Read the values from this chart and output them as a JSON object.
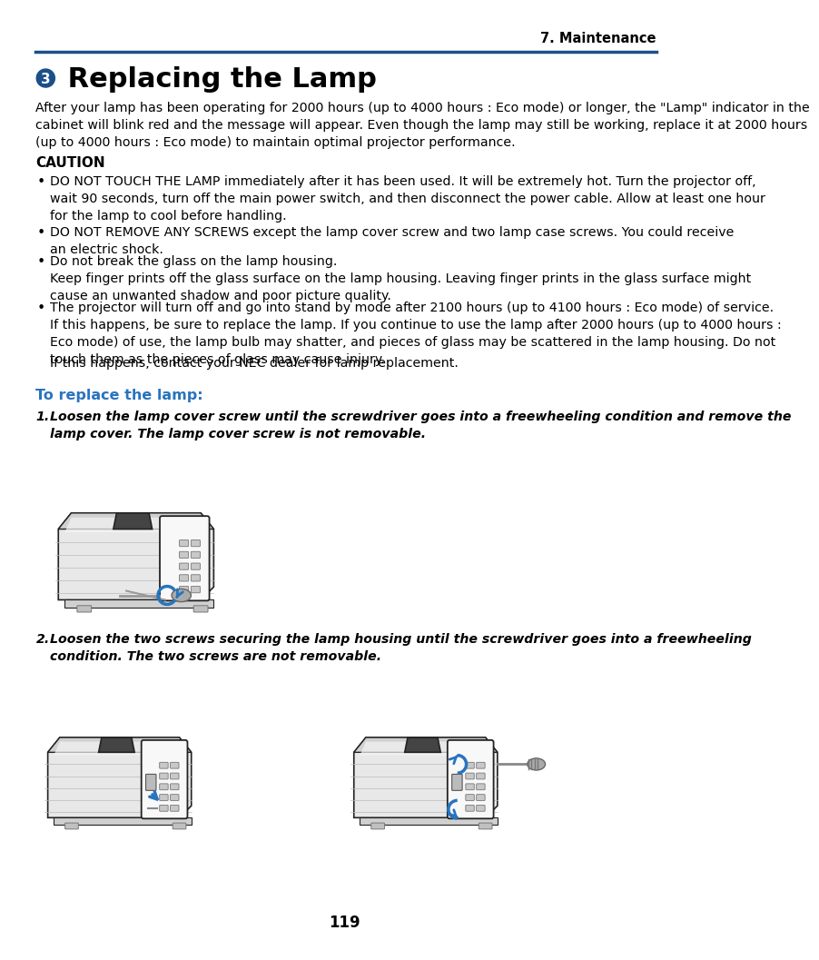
{
  "page_bg": "#ffffff",
  "header_text": "7. Maintenance",
  "header_color": "#000000",
  "header_line_color": "#1a4f8a",
  "title_circle": "3",
  "title_circle_bg": "#1a4f8a",
  "title_circle_text_color": "#ffffff",
  "title_text": " Replacing the Lamp",
  "title_fontsize": 22,
  "body_fontsize": 10.2,
  "body_color": "#000000",
  "intro_text": "After your lamp has been operating for 2000 hours (up to 4000 hours : Eco mode) or longer, the \"Lamp\" indicator in the\ncabinet will blink red and the message will appear. Even though the lamp may still be working, replace it at 2000 hours\n(up to 4000 hours : Eco mode) to maintain optimal projector performance.",
  "caution_title": "CAUTION",
  "bullet1": "DO NOT TOUCH THE LAMP immediately after it has been used. It will be extremely hot. Turn the projector off,\nwait 90 seconds, turn off the main power switch, and then disconnect the power cable. Allow at least one hour\nfor the lamp to cool before handling.",
  "bullet2": "DO NOT REMOVE ANY SCREWS except the lamp cover screw and two lamp case screws. You could receive\nan electric shock.",
  "bullet3": "Do not break the glass on the lamp housing.\nKeep finger prints off the glass surface on the lamp housing. Leaving finger prints in the glass surface might\ncause an unwanted shadow and poor picture quality.",
  "bullet4": "The projector will turn off and go into stand by mode after 2100 hours (up to 4100 hours : Eco mode) of service.\nIf this happens, be sure to replace the lamp. If you continue to use the lamp after 2000 hours (up to 4000 hours :\nEco mode) of use, the lamp bulb may shatter, and pieces of glass may be scattered in the lamp housing. Do not\ntouch them as the pieces of glass may cause injury.",
  "bullet4b": "If this happens, contact your NEC dealer for lamp replacement.",
  "replace_title": "To replace the lamp:",
  "step1_num": "1.",
  "step1_text": "Loosen the lamp cover screw until the screwdriver goes into a freewheeling condition and remove the\nlamp cover. The lamp cover screw is not removable.",
  "step2_num": "2.",
  "step2_text": "Loosen the two screws securing the lamp housing until the screwdriver goes into a freewheeling\ncondition. The two screws are not removable.",
  "page_number": "119",
  "blue_color": "#2874be",
  "dark_gray": "#555555",
  "mid_gray": "#888888",
  "light_gray": "#d8d8d8",
  "body_bg": "#f0f0f0",
  "line_color": "#333333"
}
